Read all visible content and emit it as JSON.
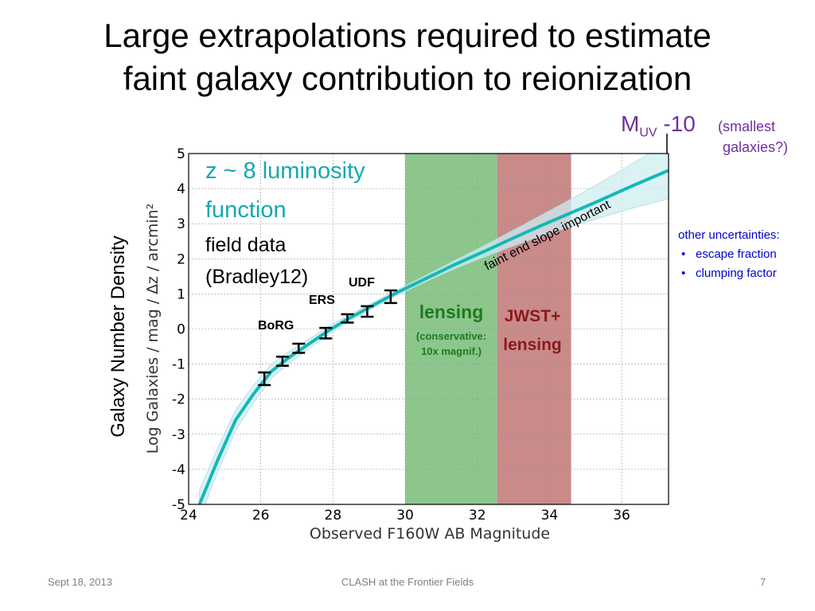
{
  "slide": {
    "title_line1": "Large extrapolations required to estimate",
    "title_line2": "faint galaxy contribution to reionization",
    "muv_prefix": "M",
    "muv_sub": "UV",
    "muv_value": " -10",
    "smallest_line1": "(smallest",
    "smallest_line2": "galaxies?)",
    "other_title": "other uncertainties:",
    "other_items": [
      "escape fraction",
      "clumping factor"
    ],
    "footer_date": "Sept 18, 2013",
    "footer_center": "CLASH at the Frontier Fields",
    "footer_page": "7"
  },
  "chart_data": {
    "type": "line",
    "outer_ylabel": "Galaxy Number Density",
    "ylabel": "Log Galaxies / mag / ∆z / arcmin²",
    "xlabel": "Observed F160W AB Magnitude",
    "xlim": [
      24,
      37.3
    ],
    "ylim": [
      -5,
      5
    ],
    "xticks": [
      "24",
      "26",
      "28",
      "30",
      "32",
      "34",
      "36"
    ],
    "yticks": [
      "5",
      "4",
      "3",
      "2",
      "1",
      "0",
      "-1",
      "-2",
      "-3",
      "-4",
      "-5"
    ],
    "series": [
      {
        "x": [
          24.3,
          24.8,
          25.3,
          25.8,
          26.3,
          26.8,
          27.3,
          27.8,
          28.3,
          28.8,
          29.3,
          29.8,
          30.3,
          30.8,
          31.3,
          31.8,
          32.3,
          32.8,
          33.3,
          33.8,
          34.3,
          34.8,
          35.3,
          35.8,
          36.3,
          36.8,
          37.3
        ],
        "y": [
          -5.0,
          -3.75,
          -2.6,
          -1.85,
          -1.2,
          -0.8,
          -0.45,
          -0.1,
          0.22,
          0.5,
          0.78,
          1.05,
          1.3,
          1.55,
          1.8,
          2.03,
          2.26,
          2.5,
          2.73,
          2.96,
          3.18,
          3.4,
          3.62,
          3.85,
          4.08,
          4.3,
          4.52
        ],
        "color": "#14b8b8"
      }
    ],
    "points": [
      {
        "x": 26.1,
        "y": -1.42,
        "err": 0.18
      },
      {
        "x": 26.6,
        "y": -0.92,
        "err": 0.13
      },
      {
        "x": 27.05,
        "y": -0.55,
        "err": 0.13
      },
      {
        "x": 27.8,
        "y": -0.12,
        "err": 0.15
      },
      {
        "x": 28.4,
        "y": 0.3,
        "err": 0.12
      },
      {
        "x": 28.95,
        "y": 0.5,
        "err": 0.15
      },
      {
        "x": 29.6,
        "y": 0.92,
        "err": 0.18
      }
    ],
    "bands": [
      {
        "x0": 30.0,
        "x1": 32.55,
        "color": "#8cc68c",
        "label_main": "lensing",
        "label_sub1": "(conservative:",
        "label_sub2": "10x magnif.)"
      },
      {
        "x0": 32.55,
        "x1": 34.6,
        "color": "#c98a8a",
        "label_main": "JWST+",
        "label_sub1": "lensing"
      }
    ],
    "annotations": {
      "lf_line1": "z ~ 8 luminosity",
      "lf_line2": "function",
      "field_line1": "field data",
      "field_line2": "(Bradley12)",
      "udf": "UDF",
      "ers": "ERS",
      "borg": "BoRG",
      "faint_end": "faint end slope important"
    },
    "colors": {
      "fit_line": "#14b8b8",
      "uncertainty_band": "#cfeef2",
      "lensing_band": "#8cc68c",
      "lensing_text": "#1f7a1f",
      "jwst_band": "#c98a8a",
      "jwst_text": "#8b1a1a",
      "lf_text": "#14a8b0"
    }
  }
}
